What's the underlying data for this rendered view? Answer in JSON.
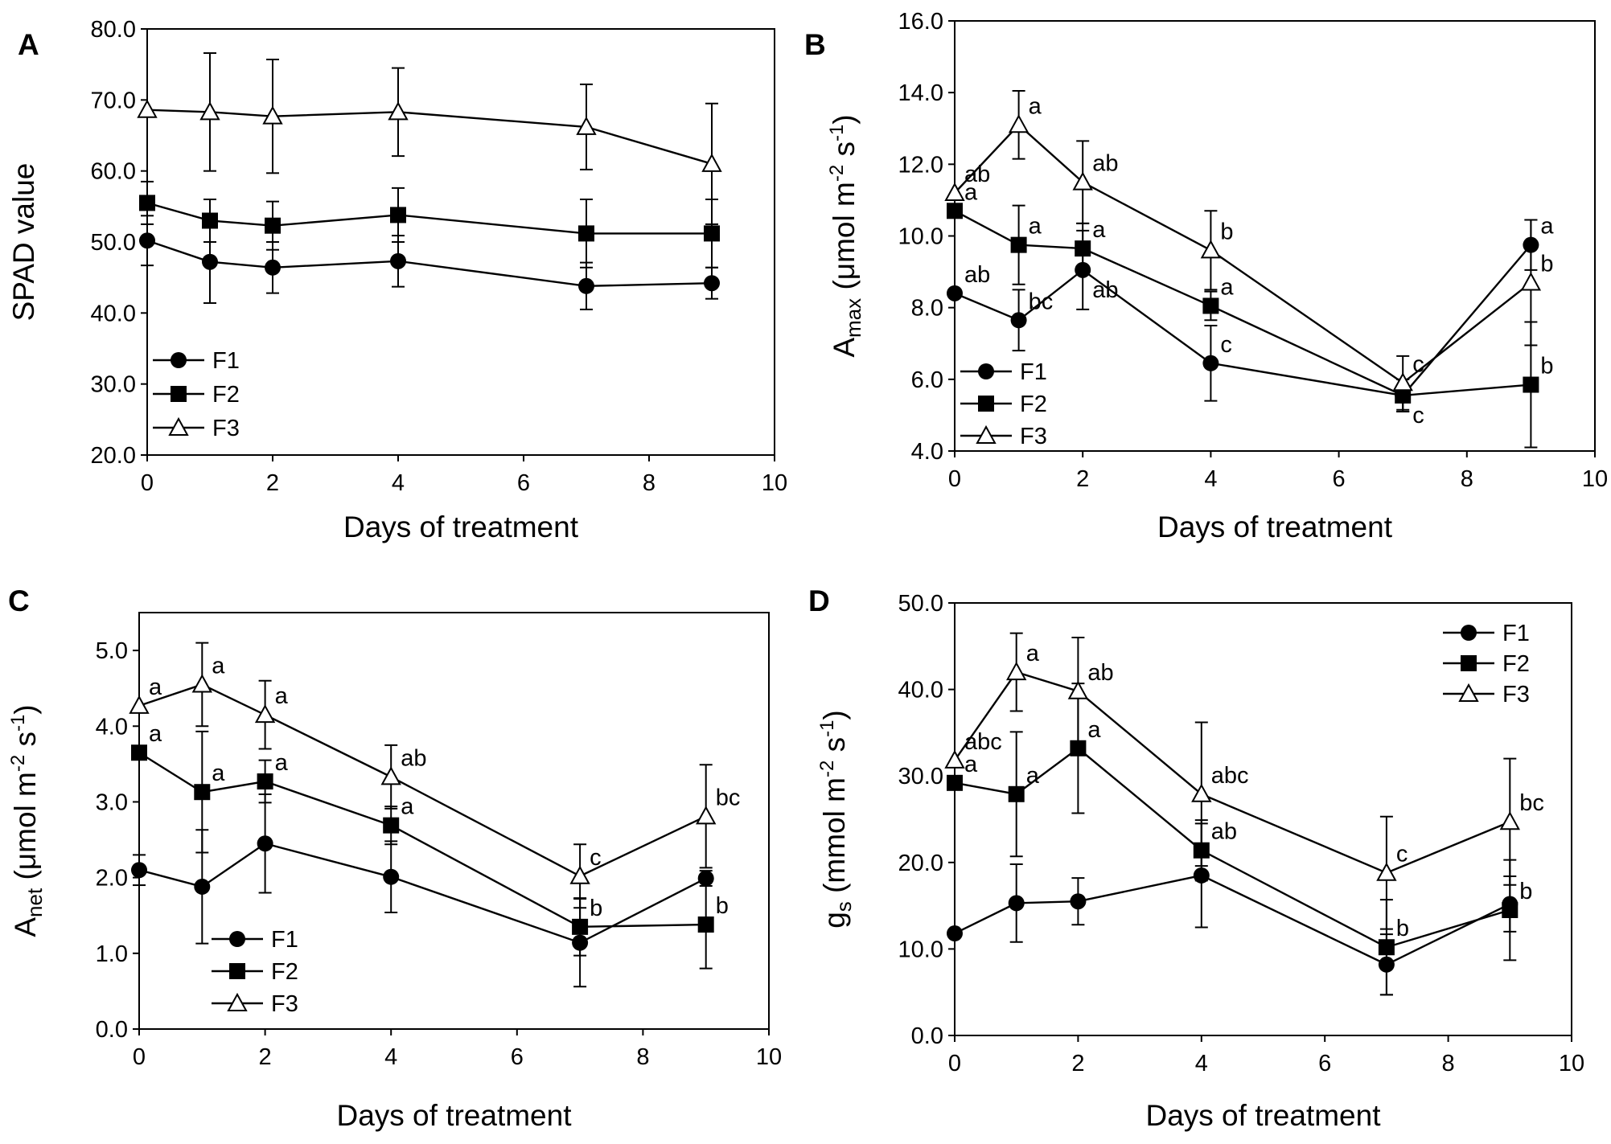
{
  "figure": {
    "panel_labels": [
      "A",
      "B",
      "C",
      "D"
    ]
  },
  "chart_data": [
    {
      "panel": "A",
      "type": "line",
      "title": "",
      "xlabel": "Days of treatment",
      "ylabel": "SPAD value",
      "xlim": [
        0,
        10
      ],
      "ylim": [
        20,
        80
      ],
      "x_ticks": [
        0,
        2,
        4,
        6,
        8,
        10
      ],
      "x_tick_labels": [
        "0",
        "2",
        "4",
        "6",
        "8",
        "10"
      ],
      "y_ticks": [
        20,
        30,
        40,
        50,
        60,
        70,
        80
      ],
      "y_tick_labels": [
        "20.0",
        "30.0",
        "40.0",
        "50.0",
        "60.0",
        "70.0",
        "80.0"
      ],
      "legend_position": "bottom-left",
      "x": [
        0,
        1,
        2,
        4,
        7,
        9
      ],
      "series": [
        {
          "name": "F1",
          "marker": "circle",
          "values": [
            50.2,
            47.2,
            46.4,
            47.3,
            43.8,
            44.2
          ],
          "errors": [
            3.5,
            5.8,
            3.6,
            3.6,
            3.3,
            2.2
          ],
          "letters": [],
          "letter_sides": []
        },
        {
          "name": "F2",
          "marker": "square",
          "values": [
            55.5,
            53.0,
            52.3,
            53.8,
            51.2,
            51.2
          ],
          "errors": [
            3.0,
            3.0,
            3.4,
            3.8,
            4.8,
            4.8
          ],
          "letters": [],
          "letter_sides": []
        },
        {
          "name": "F3",
          "marker": "triangle",
          "values": [
            68.6,
            68.3,
            67.7,
            68.3,
            66.2,
            61.0
          ],
          "errors": [
            0,
            8.3,
            8.0,
            6.2,
            6.0,
            8.5
          ],
          "letters": [],
          "letter_sides": []
        }
      ]
    },
    {
      "panel": "B",
      "type": "line",
      "title": "",
      "xlabel": "Days of treatment",
      "ylabel": "A",
      "ylabel_sub": "max",
      "ylabel_unit": " (μmol m",
      "ylabel_sup1": "-2",
      "ylabel_unit2": " s",
      "ylabel_sup2": "-1",
      "ylabel_close": ")",
      "xlim": [
        0,
        10
      ],
      "ylim": [
        4,
        16
      ],
      "x_ticks": [
        0,
        2,
        4,
        6,
        8,
        10
      ],
      "x_tick_labels": [
        "0",
        "2",
        "4",
        "6",
        "8",
        "10"
      ],
      "y_ticks": [
        4,
        6,
        8,
        10,
        12,
        14,
        16
      ],
      "y_tick_labels": [
        "4.0",
        "6.0",
        "8.0",
        "10.0",
        "12.0",
        "14.0",
        "16.0"
      ],
      "legend_position": "bottom-left",
      "x": [
        0,
        1,
        2,
        4,
        7,
        9
      ],
      "series": [
        {
          "name": "F1",
          "marker": "circle",
          "values": [
            8.4,
            7.65,
            9.05,
            6.45,
            5.55,
            9.75
          ],
          "errors": [
            0,
            0.85,
            1.1,
            1.05,
            0.45,
            0.7
          ],
          "letters": [
            "ab",
            "bc",
            "ab",
            "c",
            "c",
            "a"
          ],
          "letter_sides": [
            "above",
            "above",
            "below",
            "above",
            "below",
            "above"
          ]
        },
        {
          "name": "F2",
          "marker": "square",
          "values": [
            10.7,
            9.75,
            9.65,
            8.05,
            5.55,
            5.85
          ],
          "errors": [
            0,
            1.1,
            0.7,
            0.4,
            0.45,
            1.75
          ],
          "letters": [
            "a",
            "a",
            "a",
            "a",
            "",
            "b"
          ],
          "letter_sides": [
            "above",
            "above",
            "above",
            "above",
            "above",
            "above"
          ]
        },
        {
          "name": "F3",
          "marker": "triangle",
          "values": [
            11.2,
            13.1,
            11.5,
            9.6,
            5.9,
            8.7
          ],
          "errors": [
            0,
            0.95,
            1.15,
            1.1,
            0.75,
            1.75
          ],
          "letters": [
            "ab",
            "a",
            "ab",
            "b",
            "c",
            "b"
          ],
          "letter_sides": [
            "above",
            "above",
            "above",
            "above",
            "above",
            "above"
          ]
        }
      ]
    },
    {
      "panel": "C",
      "type": "line",
      "title": "",
      "xlabel": "Days of treatment",
      "ylabel": "A",
      "ylabel_sub": "net",
      "ylabel_unit": " (μmol m",
      "ylabel_sup1": "-2",
      "ylabel_unit2": " s",
      "ylabel_sup2": "-1",
      "ylabel_close": ")",
      "xlim": [
        0,
        10
      ],
      "ylim": [
        0,
        5.5
      ],
      "x_ticks": [
        0,
        2,
        4,
        6,
        8,
        10
      ],
      "x_tick_labels": [
        "0",
        "2",
        "4",
        "6",
        "8",
        "10"
      ],
      "y_ticks": [
        0,
        1,
        2,
        3,
        4,
        5
      ],
      "y_tick_labels": [
        "0.0",
        "1.0",
        "2.0",
        "3.0",
        "4.0",
        "5.0"
      ],
      "legend_position": "bottom-left",
      "x": [
        0,
        1,
        2,
        4,
        7,
        9
      ],
      "series": [
        {
          "name": "F1",
          "marker": "circle",
          "values": [
            2.1,
            1.88,
            2.45,
            2.01,
            1.14,
            1.99
          ],
          "errors": [
            0.2,
            0.75,
            0.65,
            0.47,
            0.58,
            0.1
          ],
          "letters": [],
          "letter_sides": []
        },
        {
          "name": "F2",
          "marker": "square",
          "values": [
            3.65,
            3.13,
            3.27,
            2.69,
            1.35,
            1.38
          ],
          "errors": [
            0,
            0.8,
            0.28,
            0.25,
            0.38,
            0.58
          ],
          "letters": [
            "a",
            "a",
            "a",
            "a",
            "b",
            "b"
          ],
          "letter_sides": [
            "above",
            "above",
            "above",
            "above",
            "above",
            "above"
          ]
        },
        {
          "name": "F3",
          "marker": "triangle",
          "values": [
            4.27,
            4.55,
            4.15,
            3.33,
            2.02,
            2.81
          ],
          "errors": [
            0,
            0.55,
            0.45,
            0.42,
            0.42,
            0.68
          ],
          "letters": [
            "a",
            "a",
            "a",
            "ab",
            "c",
            "bc"
          ],
          "letter_sides": [
            "above",
            "above",
            "above",
            "above",
            "above",
            "above"
          ]
        }
      ]
    },
    {
      "panel": "D",
      "type": "line",
      "title": "",
      "xlabel": "Days of treatment",
      "ylabel": "g",
      "ylabel_sub": "s",
      "ylabel_unit": " (mmol m",
      "ylabel_sup1": "-2",
      "ylabel_unit2": " s",
      "ylabel_sup2": "-1",
      "ylabel_close": ")",
      "xlim": [
        0,
        10
      ],
      "ylim": [
        0,
        50
      ],
      "x_ticks": [
        0,
        2,
        4,
        6,
        8,
        10
      ],
      "x_tick_labels": [
        "0",
        "2",
        "4",
        "6",
        "8",
        "10"
      ],
      "y_ticks": [
        0,
        10,
        20,
        30,
        40,
        50
      ],
      "y_tick_labels": [
        "0.0",
        "10.0",
        "20.0",
        "30.0",
        "40.0",
        "50.0"
      ],
      "legend_position": "top-right",
      "x": [
        0,
        1,
        2,
        4,
        7,
        9
      ],
      "series": [
        {
          "name": "F1",
          "marker": "circle",
          "values": [
            11.8,
            15.3,
            15.5,
            18.5,
            8.2,
            15.2
          ],
          "errors": [
            0,
            4.5,
            2.7,
            6.0,
            3.5,
            3.2
          ],
          "letters": [],
          "letter_sides": []
        },
        {
          "name": "F2",
          "marker": "square",
          "values": [
            29.2,
            27.9,
            33.2,
            21.4,
            10.2,
            14.5
          ],
          "errors": [
            0,
            7.2,
            7.5,
            3.5,
            5.5,
            5.8
          ],
          "letters": [
            "a",
            "a",
            "a",
            "ab",
            "b",
            "b"
          ],
          "letter_sides": [
            "above",
            "above",
            "above",
            "above",
            "above",
            "above"
          ]
        },
        {
          "name": "F3",
          "marker": "triangle",
          "values": [
            31.8,
            42.0,
            39.8,
            27.9,
            18.8,
            24.7
          ],
          "errors": [
            0,
            4.5,
            6.2,
            8.3,
            6.5,
            7.3
          ],
          "letters": [
            "abc",
            "a",
            "ab",
            "abc",
            "c",
            "bc"
          ],
          "letter_sides": [
            "above",
            "above",
            "above",
            "above",
            "above",
            "above"
          ]
        }
      ]
    }
  ]
}
